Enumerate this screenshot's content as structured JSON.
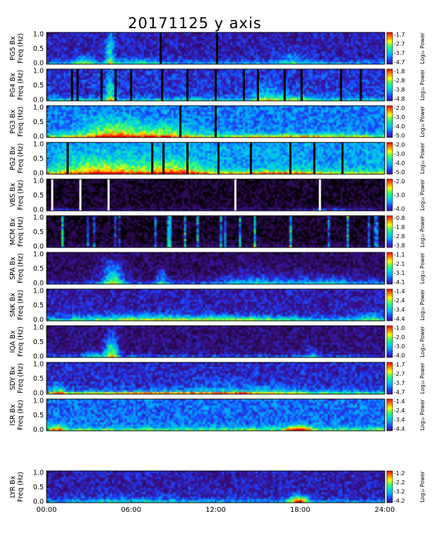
{
  "title": "20171125 y axis",
  "chart_data": {
    "type": "heatmap",
    "title": "20171125 y axis",
    "x_range_hours": [
      0,
      24
    ],
    "x_ticks": [
      "00:00",
      "06:00",
      "12:00",
      "18:00",
      "24:00"
    ],
    "x_tick_values_hours": [
      0,
      6,
      12,
      18,
      24
    ],
    "colormap": [
      "#000000",
      "#2a0a4a",
      "#3a0f8a",
      "#1e3cff",
      "#00a8ff",
      "#00e0d0",
      "#40ff60",
      "#ffff00",
      "#ff8000",
      "#ff0000"
    ],
    "panels": [
      {
        "station": "PG5",
        "ylabel_station": "PG5 Bx",
        "ylabel_freq": "Freq (Hz)",
        "ylim": [
          0,
          1.0
        ],
        "yticks": [
          "1.0",
          "0.5",
          "0.0"
        ],
        "cbar_label": "Log₁₀ Power",
        "cbar_ticks": [
          "-1.7",
          "-2.7",
          "-3.7",
          "-4.7"
        ],
        "gaps_hours": [
          8.1,
          12.1
        ],
        "bursts": [
          {
            "t": 4.5,
            "w": 0.3,
            "f": 0.9,
            "s": 0.35
          },
          {
            "t": 2.6,
            "w": 0.8,
            "f": 0.25,
            "s": 0.25
          },
          {
            "t": 6.5,
            "w": 1.5,
            "f": 0.18,
            "s": 0.18
          },
          {
            "t": 17.5,
            "w": 1.0,
            "f": 0.35,
            "s": 0.18
          }
        ],
        "bg": 0.25,
        "low": 0.3
      },
      {
        "station": "PG4",
        "ylabel_station": "PG4 Bx",
        "ylabel_freq": "Freq (Hz)",
        "ylim": [
          0,
          1.0
        ],
        "yticks": [
          "1.0",
          "0.5",
          "0.0"
        ],
        "cbar_label": "Log₁₀ Power",
        "cbar_ticks": [
          "-1.8",
          "-2.8",
          "-3.8",
          "-4.8"
        ],
        "gaps_hours": [
          1.8,
          2.2,
          3.9,
          4.9,
          6.0,
          8.2,
          10.0,
          12.0,
          14.0,
          15.0,
          16.9,
          18.1,
          20.9,
          22.3
        ],
        "bursts": [
          {
            "t": 4.5,
            "w": 0.3,
            "f": 0.8,
            "s": 0.3
          },
          {
            "t": 15.5,
            "w": 1.0,
            "f": 0.45,
            "s": 0.22
          },
          {
            "t": 17.5,
            "w": 1.3,
            "f": 0.2,
            "s": 0.2
          }
        ],
        "bg": 0.3,
        "low": 0.35
      },
      {
        "station": "PG3",
        "ylabel_station": "PG3 Bx",
        "ylabel_freq": "Freq (Hz)",
        "ylim": [
          0,
          1.0
        ],
        "yticks": [
          "1.0",
          "0.5",
          "0.0"
        ],
        "cbar_label": "Log₁₀ Power",
        "cbar_ticks": [
          "-2.0",
          "-3.0",
          "-4.0",
          "-5.0"
        ],
        "gaps_hours": [
          9.5,
          12.0
        ],
        "bursts": [
          {
            "t": 4.5,
            "w": 2.0,
            "f": 0.5,
            "s": 0.3
          },
          {
            "t": 8.0,
            "w": 2.5,
            "f": 0.4,
            "s": 0.25
          },
          {
            "t": 18.0,
            "w": 3.0,
            "f": 0.1,
            "s": 0.15
          }
        ],
        "bg": 0.4,
        "low": 0.45
      },
      {
        "station": "PG2",
        "ylabel_station": "PG2 Bx",
        "ylabel_freq": "Freq (Hz)",
        "ylim": [
          0,
          1.0
        ],
        "yticks": [
          "1.0",
          "0.5",
          "0.0"
        ],
        "cbar_label": "Log₁₀ Power",
        "cbar_ticks": [
          "-2.0",
          "-3.0",
          "-4.0",
          "-5.0"
        ],
        "gaps_hours": [
          1.5,
          7.5,
          8.3,
          10.0,
          12.2,
          14.5,
          17.3,
          19.0,
          21.0
        ],
        "bursts": [
          {
            "t": 4.0,
            "w": 3.0,
            "f": 0.45,
            "s": 0.3
          },
          {
            "t": 9.0,
            "w": 2.0,
            "f": 0.4,
            "s": 0.3
          },
          {
            "t": 16.0,
            "w": 3.0,
            "f": 0.1,
            "s": 0.2
          }
        ],
        "bg": 0.45,
        "low": 0.45
      },
      {
        "station": "VBS",
        "ylabel_station": "VBS Bx",
        "ylabel_freq": "Freq (Hz)",
        "ylim": [
          0,
          1.0
        ],
        "yticks": [
          "1.0",
          "0.5",
          "0.0"
        ],
        "cbar_label": "Log₁₀ Power",
        "cbar_ticks": [
          "-2.0",
          "-3.0",
          "-4.0"
        ],
        "gaps_hours": [
          0.4,
          2.4,
          4.4,
          13.4,
          19.4
        ],
        "gap_color": "#ffffff",
        "bursts": [
          {
            "t": 20.5,
            "w": 2.0,
            "f": 0.1,
            "s": 0.2
          },
          {
            "t": 1.0,
            "w": 0.8,
            "f": 0.1,
            "s": 0.15
          }
        ],
        "bg": 0.06,
        "low": 0.15
      },
      {
        "station": "MCM",
        "ylabel_station": "MCM Bx",
        "ylabel_freq": "Freq (Hz)",
        "ylim": [
          0,
          1.0
        ],
        "yticks": [
          "1.0",
          "0.5",
          "0.0"
        ],
        "cbar_label": "Log₁₀ Power",
        "cbar_ticks": [
          "-0.8",
          "-1.8",
          "-2.8",
          "-3.8"
        ],
        "spikes": true,
        "bursts": [],
        "bg": 0.06,
        "low": 0.15
      },
      {
        "station": "SPA",
        "ylabel_station": "SPA Bx",
        "ylabel_freq": "Freq (Hz)",
        "ylim": [
          0,
          1.0
        ],
        "yticks": [
          "1.0",
          "0.5",
          "0.0"
        ],
        "cbar_label": "Log₁₀ Power",
        "cbar_ticks": [
          "-1.1",
          "-2.1",
          "-3.1",
          "-4.1"
        ],
        "bursts": [
          {
            "t": 4.7,
            "w": 0.8,
            "f": 0.6,
            "s": 0.45
          },
          {
            "t": 8.2,
            "w": 0.4,
            "f": 0.4,
            "s": 0.3
          },
          {
            "t": 14.5,
            "w": 2.5,
            "f": 0.35,
            "s": 0.2
          },
          {
            "t": 20.0,
            "w": 3.0,
            "f": 0.3,
            "s": 0.18
          }
        ],
        "bg": 0.15,
        "low": 0.3
      },
      {
        "station": "SNK",
        "ylabel_station": "SNK Bx",
        "ylabel_freq": "Freq (Hz)",
        "ylim": [
          0,
          1.0
        ],
        "yticks": [
          "1.0",
          "0.5",
          "0.0"
        ],
        "cbar_label": "Log₁₀ Power",
        "cbar_ticks": [
          "-1.4",
          "-2.4",
          "-3.4",
          "-4.4"
        ],
        "bursts": [
          {
            "t": 7.0,
            "w": 5.0,
            "f": 0.2,
            "s": 0.25
          },
          {
            "t": 14.0,
            "w": 4.0,
            "f": 0.15,
            "s": 0.2
          },
          {
            "t": 23.0,
            "w": 1.0,
            "f": 0.25,
            "s": 0.2
          }
        ],
        "bg": 0.25,
        "low": 0.35
      },
      {
        "station": "IQA",
        "ylabel_station": "IQA Bx",
        "ylabel_freq": "Freq (Hz)",
        "ylim": [
          0,
          1.0
        ],
        "yticks": [
          "1.0",
          "0.5",
          "0.0"
        ],
        "cbar_label": "Log₁₀ Power",
        "cbar_ticks": [
          "-1.0",
          "-2.0",
          "-3.0",
          "-4.0"
        ],
        "bursts": [
          {
            "t": 4.6,
            "w": 0.5,
            "f": 0.6,
            "s": 0.5
          },
          {
            "t": 3.3,
            "w": 0.7,
            "f": 0.2,
            "s": 0.25
          },
          {
            "t": 18.8,
            "w": 0.5,
            "f": 0.3,
            "s": 0.2
          }
        ],
        "bg": 0.18,
        "low": 0.25
      },
      {
        "station": "SDY",
        "ylabel_station": "SDY Bx",
        "ylabel_freq": "Freq (Hz)",
        "ylim": [
          0,
          1.0
        ],
        "yticks": [
          "1.0",
          "0.5",
          "0.0"
        ],
        "cbar_label": "Log₁₀ Power",
        "cbar_ticks": [
          "-1.7",
          "-2.7",
          "-3.7",
          "-4.7"
        ],
        "bursts": [
          {
            "t": 8.0,
            "w": 8.0,
            "f": 0.05,
            "s": 0.35
          },
          {
            "t": 14.0,
            "w": 4.0,
            "f": 0.3,
            "s": 0.15
          },
          {
            "t": 0.8,
            "w": 0.4,
            "f": 0.3,
            "s": 0.3
          }
        ],
        "bg": 0.28,
        "low": 0.45
      },
      {
        "station": "ISR",
        "ylabel_station": "ISR Bx",
        "ylabel_freq": "Freq (Hz)",
        "ylim": [
          0,
          1.0
        ],
        "yticks": [
          "1.0",
          "0.5",
          "0.0"
        ],
        "cbar_label": "Log₁₀ Power",
        "cbar_ticks": [
          "-1.4",
          "-2.4",
          "-3.4",
          "-4.4"
        ],
        "bursts": [
          {
            "t": 17.9,
            "w": 0.8,
            "f": 0.15,
            "s": 0.55
          },
          {
            "t": 0.8,
            "w": 0.5,
            "f": 0.2,
            "s": 0.3
          }
        ],
        "bg": 0.38,
        "low": 0.4
      },
      {
        "station": "LYR",
        "ylabel_station": "LYR Bx",
        "ylabel_freq": "Freq (Hz)",
        "ylim": [
          0,
          1.0
        ],
        "yticks": [
          "1.0",
          "0.5",
          "0.0"
        ],
        "cbar_label": "Log₁₀ Power",
        "cbar_ticks": [
          "-1.2",
          "-2.2",
          "-3.2",
          "-4.2"
        ],
        "bursts": [
          {
            "t": 17.9,
            "w": 0.7,
            "f": 0.2,
            "s": 0.55
          },
          {
            "t": 6.0,
            "w": 4.0,
            "f": 0.2,
            "s": 0.12
          }
        ],
        "bg": 0.25,
        "low": 0.3
      }
    ]
  }
}
